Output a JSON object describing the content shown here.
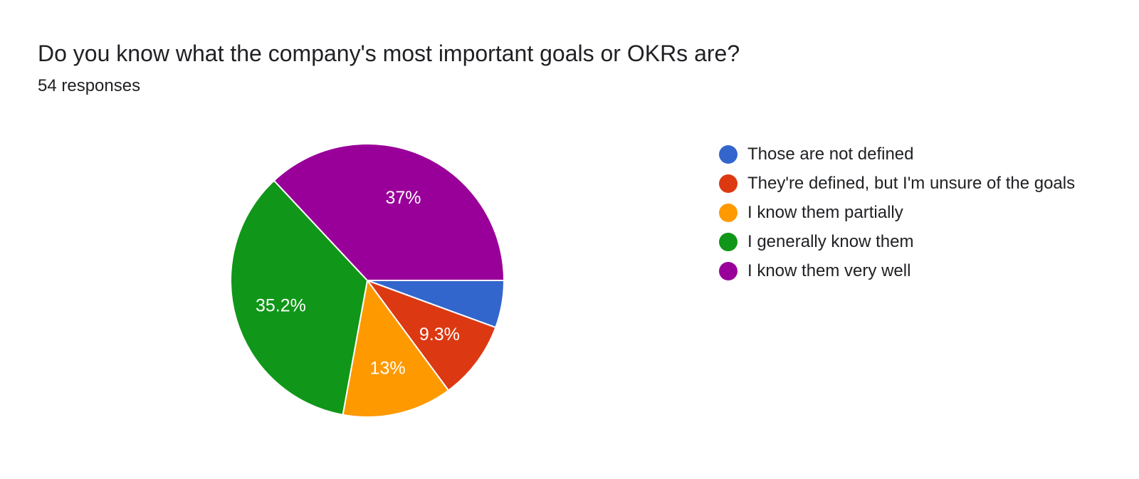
{
  "header": {
    "title": "Do you know what the company's most important goals or OKRs are?",
    "subtitle": "54 responses"
  },
  "chart_data": {
    "type": "pie",
    "title": "Do you know what the company's most important goals or OKRs are?",
    "subtitle": "54 responses",
    "legend_position": "right",
    "start_angle_deg": 90,
    "direction": "clockwise",
    "slices": [
      {
        "label": "Those are not defined",
        "value": 5.6,
        "display": "",
        "color": "#3366cc"
      },
      {
        "label": "They're defined, but I'm unsure of the goals",
        "value": 9.3,
        "display": "9.3%",
        "color": "#dc3912"
      },
      {
        "label": "I know them partially",
        "value": 13,
        "display": "13%",
        "color": "#ff9900"
      },
      {
        "label": "I generally know them",
        "value": 35.2,
        "display": "35.2%",
        "color": "#109618"
      },
      {
        "label": "I know them very well",
        "value": 37,
        "display": "37%",
        "color": "#990099"
      }
    ]
  }
}
